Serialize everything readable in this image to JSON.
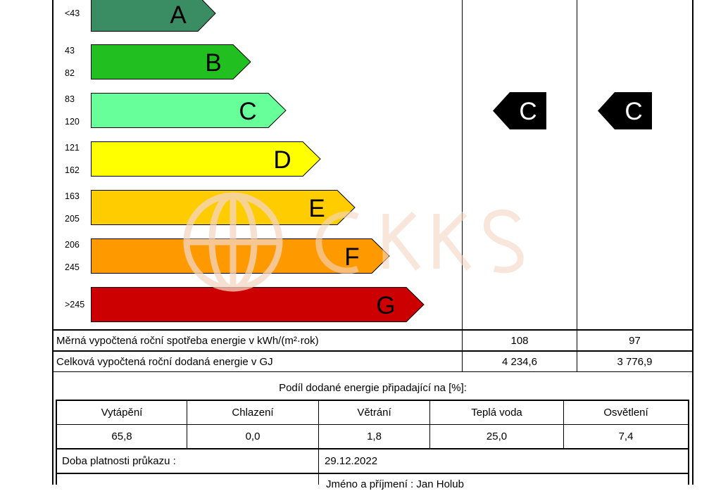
{
  "ranges": [
    {
      "single": "<43"
    },
    {
      "from": "43",
      "to": "82"
    },
    {
      "from": "83",
      "to": "120"
    },
    {
      "from": "121",
      "to": "162"
    },
    {
      "from": "163",
      "to": "205"
    },
    {
      "from": "206",
      "to": "245"
    },
    {
      "single": ">245"
    }
  ],
  "classes": [
    {
      "letter": "A",
      "color": "#3a8c63"
    },
    {
      "letter": "B",
      "color": "#21bf1f"
    },
    {
      "letter": "C",
      "color": "#66ff99"
    },
    {
      "letter": "D",
      "color": "#ffff00"
    },
    {
      "letter": "E",
      "color": "#ffcc00"
    },
    {
      "letter": "F",
      "color": "#ff9900"
    },
    {
      "letter": "G",
      "color": "#cc0000"
    }
  ],
  "ratings": {
    "column1": "C",
    "column2": "C"
  },
  "specific_row": {
    "label": "Měrná vypočtená roční spotřeba energie v kWh/(m²·rok)",
    "value1": "108",
    "value2": "97"
  },
  "total_row": {
    "label": "Celková vypočtená roční dodaná energie v GJ",
    "value1": "4 234,6",
    "value2": "3 776,9"
  },
  "share": {
    "title": "Podíl dodané energie připadající na [%]:",
    "headers": [
      "Vytápění",
      "Chlazení",
      "Větrání",
      "Teplá voda",
      "Osvětlení"
    ],
    "values": [
      "65,8",
      "0,0",
      "1,8",
      "25,0",
      "7,4"
    ]
  },
  "validity": {
    "label": "Doba platnosti průkazu :",
    "date": "29.12.2022"
  },
  "author": {
    "text": "Jméno a příjmení : Jan Holub"
  },
  "watermark_color": "#f4d6c4"
}
